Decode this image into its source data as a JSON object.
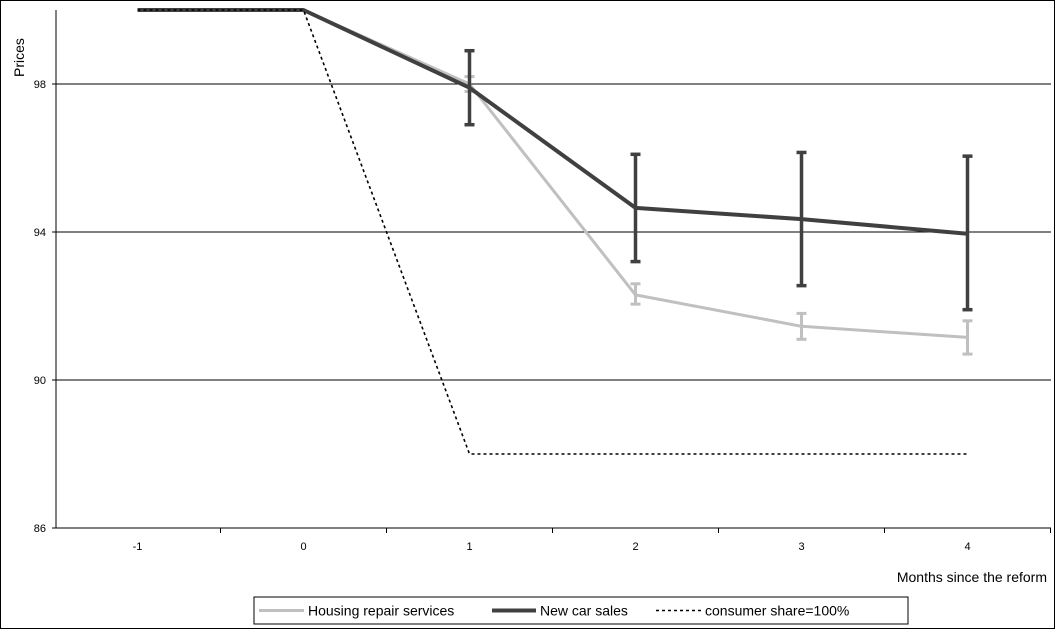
{
  "chart_data": {
    "type": "line",
    "title": "",
    "xlabel": "Months since the reform",
    "ylabel": "Prices",
    "categories": [
      "-1",
      "0",
      "1",
      "2",
      "3",
      "4"
    ],
    "x": [
      -1,
      0,
      1,
      2,
      3,
      4
    ],
    "ylim": [
      86,
      100
    ],
    "yticks": [
      86,
      90,
      94,
      98
    ],
    "grid": true,
    "legend_position": "bottom",
    "series": [
      {
        "name": "Housing repair services",
        "color": "#c0c0c0",
        "style": "solid",
        "values": [
          100,
          100,
          98.0,
          92.3,
          91.45,
          91.15
        ],
        "error_low": [
          null,
          null,
          97.8,
          92.05,
          91.1,
          90.7
        ],
        "error_high": [
          null,
          null,
          98.2,
          92.6,
          91.8,
          91.6
        ]
      },
      {
        "name": "New car sales",
        "color": "#404040",
        "style": "solid",
        "values": [
          100,
          100,
          97.9,
          94.65,
          94.35,
          93.95
        ],
        "error_low": [
          null,
          null,
          96.9,
          93.2,
          92.55,
          91.9
        ],
        "error_high": [
          null,
          null,
          98.9,
          96.1,
          96.15,
          96.05
        ]
      },
      {
        "name": "consumer share=100%",
        "color": "#000000",
        "style": "dotted",
        "values": [
          100,
          100,
          88,
          88,
          88,
          88
        ]
      }
    ]
  }
}
